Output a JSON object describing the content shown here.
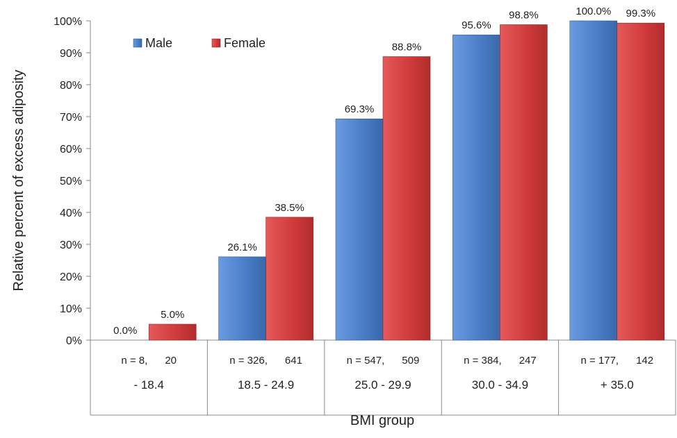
{
  "chart_data": {
    "type": "bar",
    "title": "",
    "xlabel": "BMI group",
    "ylabel": "Relative percent of excess adiposity",
    "ylim": [
      0,
      100
    ],
    "y_ticks": [
      "0%",
      "10%",
      "20%",
      "30%",
      "40%",
      "50%",
      "60%",
      "70%",
      "80%",
      "90%",
      "100%"
    ],
    "categories": [
      "- 18.4",
      "18.5 - 24.9",
      "25.0 - 29.9",
      "30.0 - 34.9",
      "+ 35.0"
    ],
    "sample_sizes": [
      "n = 8,      20",
      "n = 326,      641",
      "n = 547,      509",
      "n = 384,      247",
      "n = 177,      142"
    ],
    "series": [
      {
        "name": "Male",
        "color": "#4a7fc9",
        "values": [
          0.0,
          26.1,
          69.3,
          95.6,
          100.0
        ],
        "labels": [
          "0.0%",
          "26.1%",
          "69.3%",
          "95.6%",
          "100.0%"
        ]
      },
      {
        "name": "Female",
        "color": "#d13c3c",
        "values": [
          5.0,
          38.5,
          88.8,
          98.8,
          99.3
        ],
        "labels": [
          "5.0%",
          "38.5%",
          "88.8%",
          "98.8%",
          "99.3%"
        ]
      }
    ],
    "legend_position": "top-left",
    "grid": false
  }
}
